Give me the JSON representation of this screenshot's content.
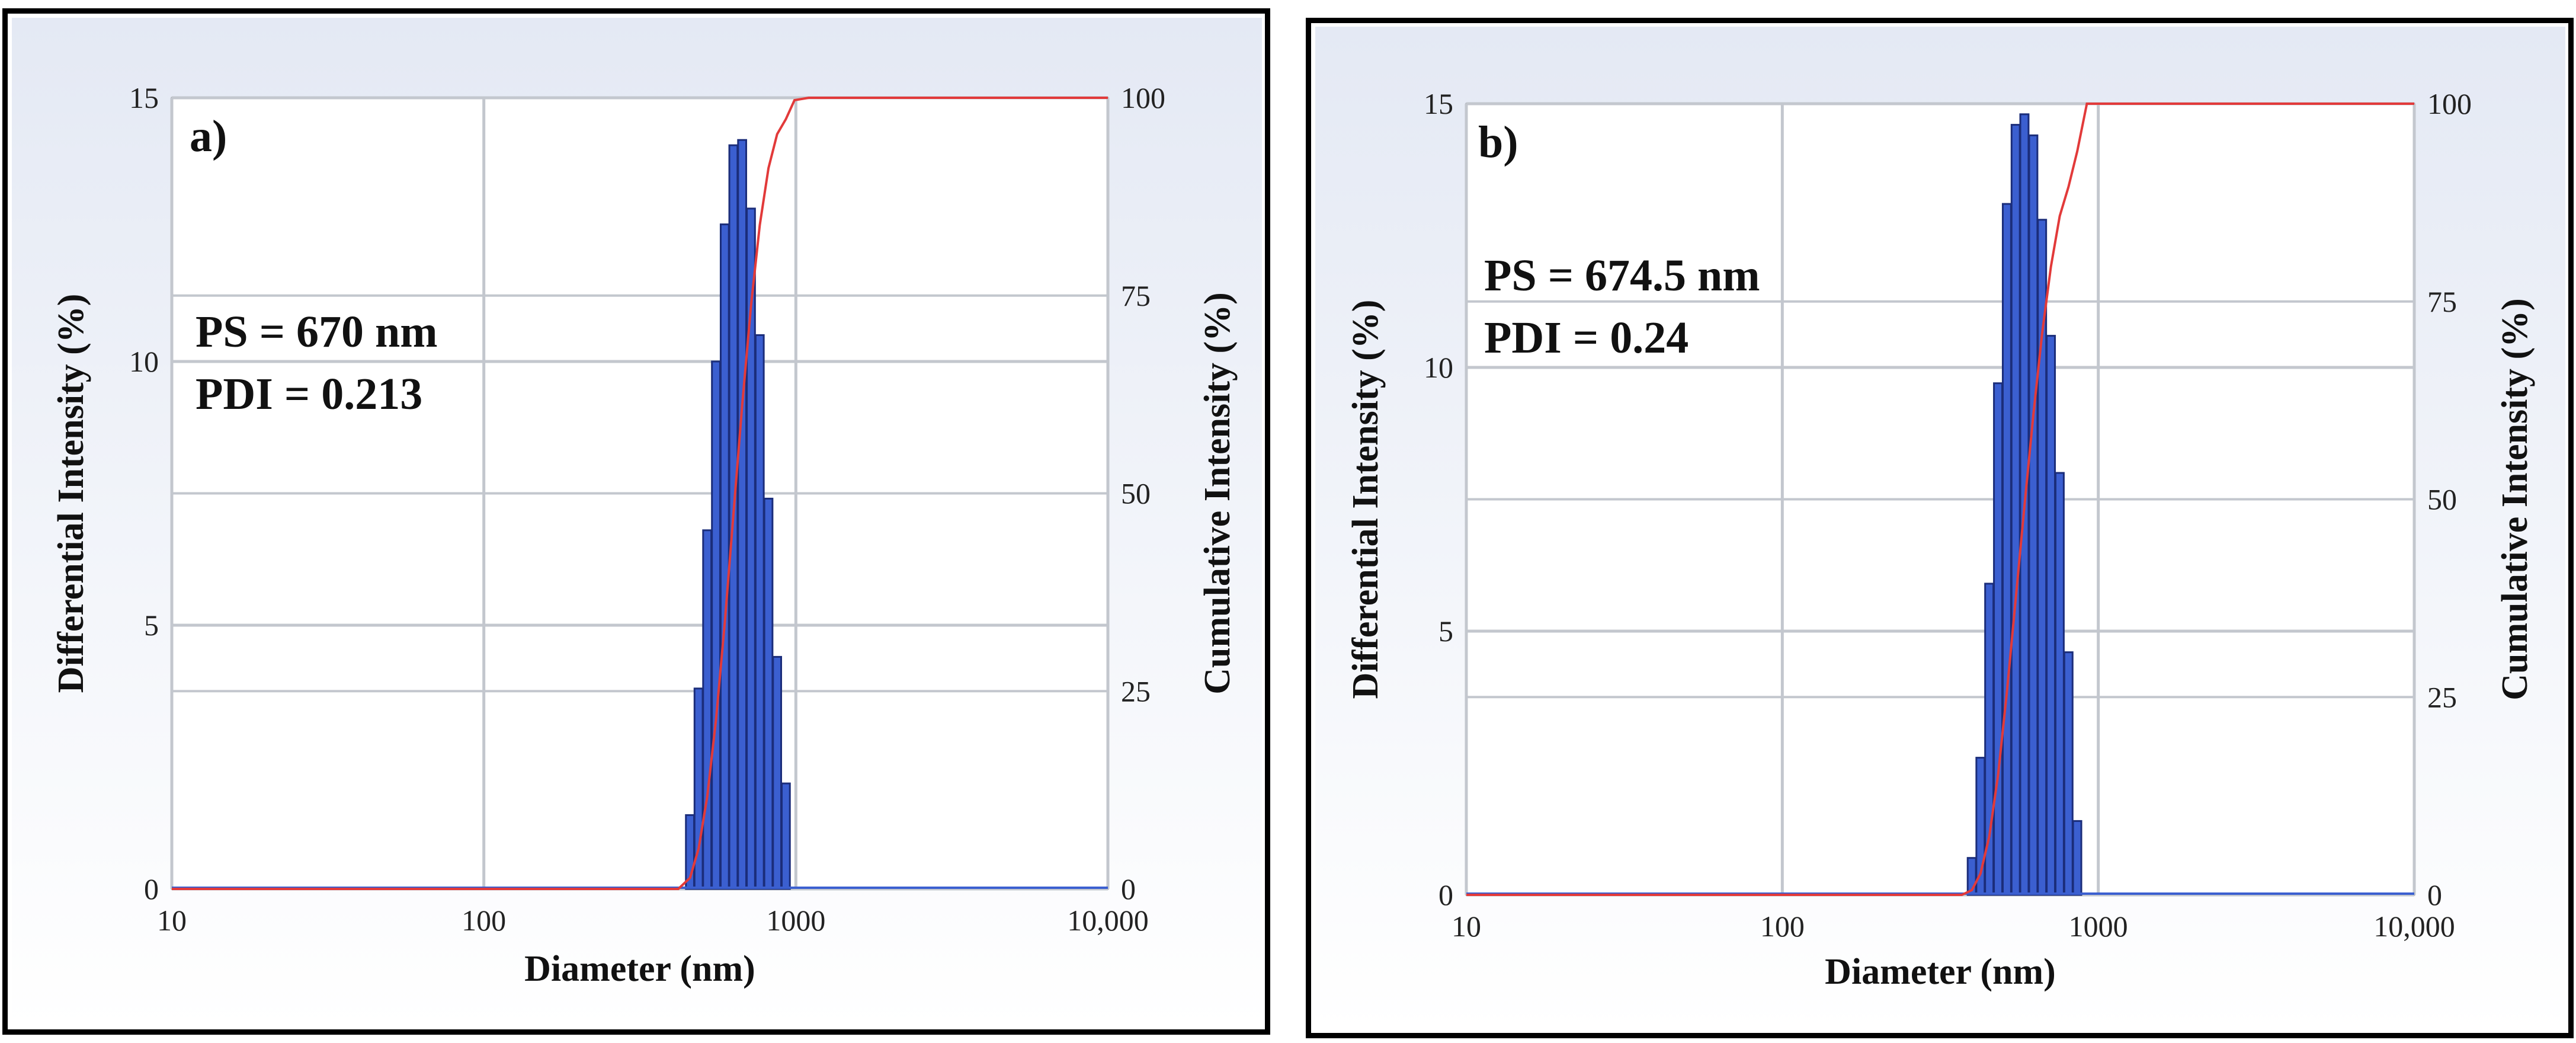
{
  "chart_data": [
    {
      "type": "bar",
      "panel_label": "a)",
      "annotations": [
        "PS = 670 nm",
        "PDI = 0.213"
      ],
      "xlabel": "Diameter (nm)",
      "ylabel": "Differential Intensity (%)",
      "y2label": "Cumulative Intensity (%)",
      "x_scale": "log",
      "xlim": [
        10,
        10000
      ],
      "x_ticks": [
        "10",
        "100",
        "1000",
        "10,000"
      ],
      "ylim": [
        0,
        15
      ],
      "y_ticks": [
        "0",
        "5",
        "10",
        "15"
      ],
      "y2lim": [
        0,
        100
      ],
      "y2_ticks": [
        "0",
        "25",
        "50",
        "75",
        "100"
      ],
      "grid": true,
      "colors": {
        "bars": "#3b5fd0",
        "cumulative": "#e23a3a",
        "baseline": "#3b5fd0",
        "background_top": "#e4e9f4",
        "background_bottom": "#ffffff"
      },
      "series": [
        {
          "type": "bar",
          "x": [
            458,
            488,
            520,
            555,
            592,
            631,
            673,
            718,
            766,
            817,
            871,
            929
          ],
          "values": [
            1.4,
            3.8,
            6.8,
            10.0,
            12.6,
            14.1,
            14.2,
            12.9,
            10.5,
            7.4,
            4.4,
            2.0
          ]
        },
        {
          "type": "line",
          "axis": "right",
          "x": [
            10,
            420,
            458,
            488,
            520,
            555,
            592,
            631,
            673,
            718,
            766,
            817,
            871,
            929,
            990,
            1100,
            10000
          ],
          "values": [
            0,
            0,
            1.4,
            5.1,
            11.7,
            21.5,
            33.7,
            47.4,
            61.2,
            73.7,
            83.9,
            91.1,
            95.4,
            97.3,
            99.7,
            100,
            100
          ]
        }
      ]
    },
    {
      "type": "bar",
      "panel_label": "b)",
      "annotations": [
        "PS = 674.5 nm",
        "PDI = 0.24"
      ],
      "xlabel": "Diameter (nm)",
      "ylabel": "Differential Intensity (%)",
      "y2label": "Cumulative Intensity (%)",
      "x_scale": "log",
      "xlim": [
        10,
        10000
      ],
      "x_ticks": [
        "10",
        "100",
        "1000",
        "10,000"
      ],
      "ylim": [
        0,
        15
      ],
      "y_ticks": [
        "0",
        "5",
        "10",
        "15"
      ],
      "y2lim": [
        0,
        100
      ],
      "y2_ticks": [
        "0",
        "25",
        "50",
        "75",
        "100"
      ],
      "grid": true,
      "colors": {
        "bars": "#3b5fd0",
        "cumulative": "#e23a3a",
        "baseline": "#3b5fd0",
        "background_top": "#e4e9f4",
        "background_bottom": "#ffffff"
      },
      "series": [
        {
          "type": "bar",
          "x": [
            398,
            424,
            452,
            482,
            514,
            548,
            584,
            623,
            664,
            708,
            755,
            805,
            858
          ],
          "values": [
            0.7,
            2.6,
            5.9,
            9.7,
            13.1,
            14.6,
            14.8,
            14.4,
            12.8,
            10.6,
            8.0,
            4.6,
            1.4
          ]
        },
        {
          "type": "line",
          "axis": "right",
          "x": [
            10,
            370,
            398,
            424,
            452,
            482,
            514,
            548,
            584,
            623,
            664,
            708,
            755,
            805,
            858,
            920,
            10000
          ],
          "values": [
            0,
            0,
            0.6,
            2.7,
            7.4,
            15.2,
            25.7,
            37.4,
            49.2,
            60.7,
            70.9,
            79.4,
            85.8,
            89.5,
            94.0,
            100,
            100
          ]
        }
      ]
    }
  ]
}
